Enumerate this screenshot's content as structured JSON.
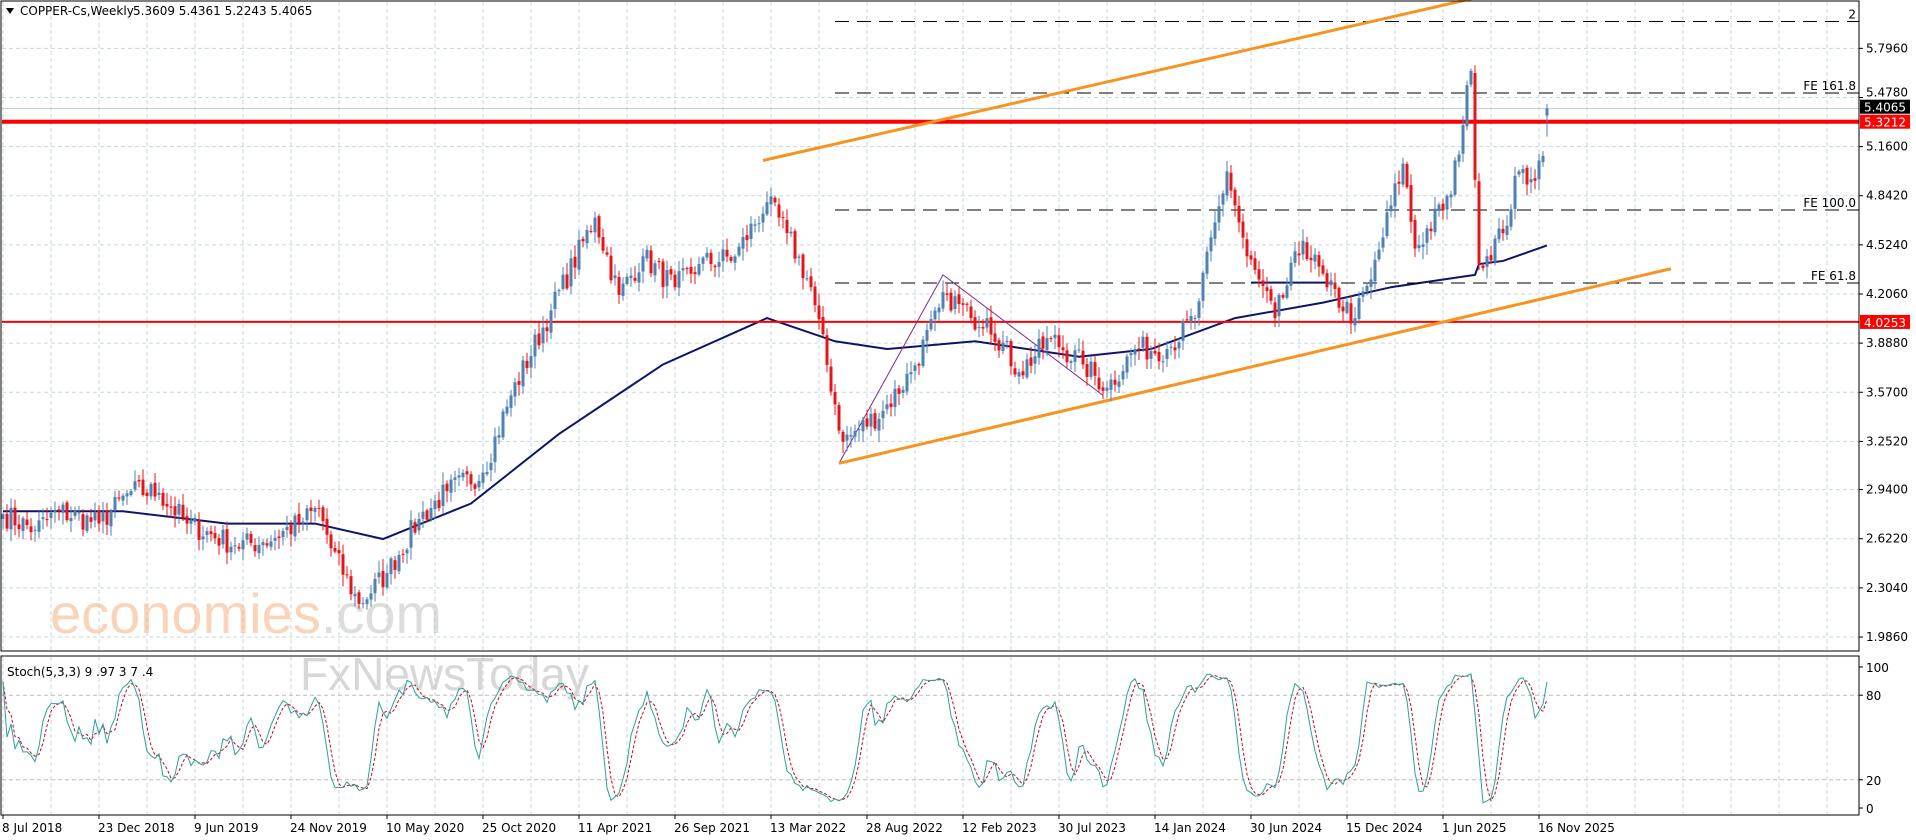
{
  "header": {
    "symbol_label": "COPPER-Cs,Weekly",
    "ohlc": "5.3609 5.4361 5.2243 5.4065",
    "menu_icon": "triangle-down-icon"
  },
  "watermark": {
    "brand1": "economies",
    "brand1_suffix": ".com",
    "brand2": "FxNewsToday"
  },
  "colors": {
    "bull": "#4f81b4",
    "bear": "#e8141a",
    "ma": "#0d1566",
    "channel": "#f7931e",
    "level": "#ff0000",
    "fib": "#000000",
    "stoch_main": "#2aa198",
    "stoch_signal": "#d0021b",
    "grid": "#c6d7e0",
    "triangle": "#7b2d8e"
  },
  "chart_data": {
    "type": "candlestick",
    "title": "COPPER-Cs,Weekly",
    "x_tick_labels": [
      "8 Jul 2018",
      "23 Dec 2018",
      "9 Jun 2019",
      "24 Nov 2019",
      "10 May 2020",
      "25 Oct 2020",
      "11 Apr 2021",
      "26 Sep 2021",
      "13 Mar 2022",
      "28 Aug 2022",
      "12 Feb 2023",
      "30 Jul 2023",
      "14 Jan 2024",
      "30 Jun 2024",
      "15 Dec 2024",
      "1 Jun 2025",
      "16 Nov 2025"
    ],
    "y_tick_labels": [
      "5.7960",
      "5.4780",
      "5.1600",
      "4.8420",
      "4.5240",
      "4.2060",
      "3.8880",
      "3.5700",
      "3.2520",
      "2.9400",
      "2.6220",
      "2.3040",
      "1.9860"
    ],
    "ylim": [
      1.9,
      6.04
    ],
    "grid": true,
    "last": {
      "open": 5.3609,
      "high": 5.4361,
      "low": 5.2243,
      "close": 5.4065,
      "label": "5.4065"
    },
    "close_path": [
      [
        "2018-07-08",
        2.78
      ],
      [
        "2018-09-02",
        2.68
      ],
      [
        "2018-10-14",
        2.8
      ],
      [
        "2018-12-23",
        2.72
      ],
      [
        "2019-02-17",
        2.93
      ],
      [
        "2019-04-07",
        2.92
      ],
      [
        "2019-05-26",
        2.72
      ],
      [
        "2019-08-18",
        2.58
      ],
      [
        "2019-10-06",
        2.6
      ],
      [
        "2019-12-08",
        2.72
      ],
      [
        "2020-01-12",
        2.82
      ],
      [
        "2020-02-02",
        2.56
      ],
      [
        "2020-03-22",
        2.2
      ],
      [
        "2020-05-10",
        2.4
      ],
      [
        "2020-07-05",
        2.75
      ],
      [
        "2020-08-23",
        2.93
      ],
      [
        "2020-10-25",
        3.05
      ],
      [
        "2020-12-13",
        3.55
      ],
      [
        "2021-02-21",
        4.1
      ],
      [
        "2021-05-09",
        4.7
      ],
      [
        "2021-06-20",
        4.2
      ],
      [
        "2021-08-01",
        4.45
      ],
      [
        "2021-09-26",
        4.25
      ],
      [
        "2021-11-07",
        4.4
      ],
      [
        "2022-01-09",
        4.45
      ],
      [
        "2022-03-06",
        4.8
      ],
      [
        "2022-04-10",
        4.6
      ],
      [
        "2022-05-22",
        4.25
      ],
      [
        "2022-07-17",
        3.25
      ],
      [
        "2022-09-25",
        3.45
      ],
      [
        "2022-11-13",
        3.7
      ],
      [
        "2023-01-15",
        4.2
      ],
      [
        "2023-02-26",
        4.05
      ],
      [
        "2023-03-26",
        4.05
      ],
      [
        "2023-05-21",
        3.7
      ],
      [
        "2023-07-16",
        3.92
      ],
      [
        "2023-09-10",
        3.75
      ],
      [
        "2023-10-22",
        3.6
      ],
      [
        "2023-12-10",
        3.85
      ],
      [
        "2024-02-04",
        3.85
      ],
      [
        "2024-03-24",
        4.05
      ],
      [
        "2024-05-19",
        5.0
      ],
      [
        "2024-06-23",
        4.45
      ],
      [
        "2024-08-11",
        4.05
      ],
      [
        "2024-09-29",
        4.55
      ],
      [
        "2024-11-10",
        4.25
      ],
      [
        "2024-12-29",
        4.05
      ],
      [
        "2025-01-26",
        4.3
      ],
      [
        "2025-03-23",
        5.05
      ],
      [
        "2025-04-13",
        4.5
      ],
      [
        "2025-06-15",
        4.85
      ],
      [
        "2025-07-20",
        5.65
      ],
      [
        "2025-08-03",
        4.4
      ],
      [
        "2025-09-14",
        4.6
      ],
      [
        "2025-10-12",
        5.0
      ],
      [
        "2025-11-02",
        4.95
      ],
      [
        "2025-11-23",
        5.1
      ],
      [
        "2025-11-30",
        5.4065
      ]
    ],
    "moving_average": [
      [
        "2018-07-08",
        2.8
      ],
      [
        "2019-02-03",
        2.8
      ],
      [
        "2019-08-04",
        2.72
      ],
      [
        "2020-01-05",
        2.72
      ],
      [
        "2020-05-03",
        2.62
      ],
      [
        "2020-10-04",
        2.85
      ],
      [
        "2021-03-07",
        3.3
      ],
      [
        "2021-09-05",
        3.75
      ],
      [
        "2022-03-06",
        4.05
      ],
      [
        "2022-07-03",
        3.9
      ],
      [
        "2022-10-02",
        3.85
      ],
      [
        "2023-03-05",
        3.9
      ],
      [
        "2023-09-03",
        3.8
      ],
      [
        "2024-01-07",
        3.85
      ],
      [
        "2024-06-02",
        4.05
      ],
      [
        "2024-11-03",
        4.15
      ],
      [
        "2025-03-02",
        4.25
      ],
      [
        "2025-07-27",
        4.33
      ],
      [
        "2025-08-03",
        4.4
      ],
      [
        "2025-09-14",
        4.42
      ],
      [
        "2025-11-30",
        4.52
      ]
    ],
    "horizontal_levels": [
      {
        "price": 5.3212,
        "label": "5.3212",
        "style": "thick"
      },
      {
        "price": 4.0253,
        "label": "4.0253",
        "style": "thin"
      }
    ],
    "fib_expansion": {
      "start": "2022-07-03",
      "levels": [
        {
          "price": 5.97,
          "label": "2"
        },
        {
          "price": 5.507,
          "label": "FE 161.8"
        },
        {
          "price": 4.75,
          "label": "FE 100.0"
        },
        {
          "price": 4.277,
          "label": "FE 61.8"
        }
      ],
      "anchors": [
        [
          "2022-07-10",
          3.11
        ],
        [
          "2023-01-08",
          4.33
        ],
        [
          "2023-10-15",
          3.55
        ]
      ]
    },
    "channel": {
      "upper": [
        [
          "2022-02-27",
          5.07
        ],
        [
          "2025-08-17",
          6.14
        ]
      ],
      "lower": [
        [
          "2022-07-10",
          3.11
        ],
        [
          "2026-07-05",
          4.37
        ]
      ]
    },
    "segment": [
      [
        "2024-06-30",
        4.28
      ],
      [
        "2024-11-10",
        4.28
      ]
    ],
    "stochastic": {
      "label": "Stoch(5,3,3) 9 .97 3 7 .4",
      "params": [
        5,
        3,
        3
      ],
      "ylim": [
        0,
        100
      ],
      "levels": [
        20,
        80
      ],
      "y_tick_labels": [
        "100",
        "80",
        "20",
        "0"
      ]
    }
  }
}
